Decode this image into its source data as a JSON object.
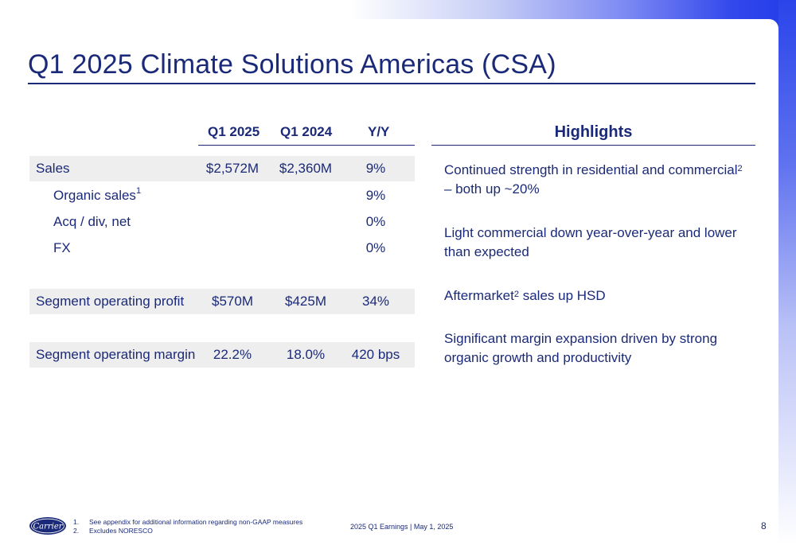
{
  "title": "Q1 2025 Climate Solutions Americas (CSA)",
  "table": {
    "columns": [
      "Q1 2025",
      "Q1 2024",
      "Y/Y"
    ],
    "rows": [
      {
        "label": "Sales",
        "sup": "",
        "q1_2025": "$2,572M",
        "q1_2024": "$2,360M",
        "yy": "9%"
      },
      {
        "label": "Organic sales",
        "sup": "1",
        "q1_2025": "",
        "q1_2024": "",
        "yy": "9%"
      },
      {
        "label": "Acq / div, net",
        "sup": "",
        "q1_2025": "",
        "q1_2024": "",
        "yy": "0%"
      },
      {
        "label": "FX",
        "sup": "",
        "q1_2025": "",
        "q1_2024": "",
        "yy": "0%"
      },
      {
        "label": "Segment operating profit",
        "sup": "",
        "q1_2025": "$570M",
        "q1_2024": "$425M",
        "yy": "34%"
      },
      {
        "label": "Segment operating margin",
        "sup": "",
        "q1_2025": "22.2%",
        "q1_2024": "18.0%",
        "yy": "420 bps"
      }
    ]
  },
  "highlights": {
    "heading": "Highlights",
    "items": [
      {
        "pre": "Continued strength in residential and commercial",
        "sup": "2",
        "post": " – both up ~20%"
      },
      {
        "pre": "Light commercial down year-over-year and lower than expected",
        "sup": "",
        "post": ""
      },
      {
        "pre": "Aftermarket",
        "sup": "2",
        "post": " sales up HSD"
      },
      {
        "pre": "Significant margin expansion driven by strong organic growth and productivity",
        "sup": "",
        "post": ""
      }
    ]
  },
  "footer": {
    "logo_text": "Carrier",
    "footnotes": [
      {
        "num": "1.",
        "text": "See appendix for additional information regarding non-GAAP measures"
      },
      {
        "num": "2.",
        "text": "Excludes NORESCO"
      }
    ],
    "center": "2025 Q1 Earnings | May 1, 2025",
    "page": "8"
  },
  "colors": {
    "navy": "#1b2a78",
    "accent_blue": "#1f3be8",
    "row_shade": "#eeeeee"
  }
}
